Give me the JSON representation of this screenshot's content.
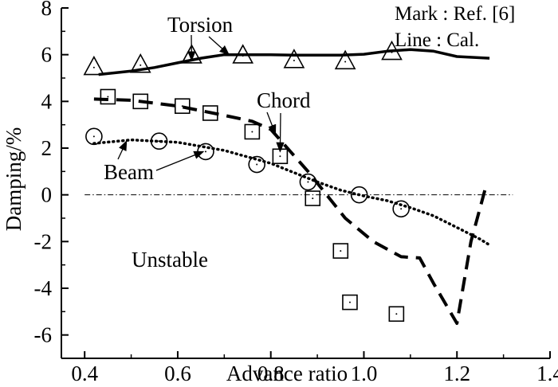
{
  "chart_data": {
    "type": "line",
    "xlabel": "Advance ratio",
    "ylabel": "Damping/%",
    "xlim": [
      0.35,
      1.4
    ],
    "ylim": [
      -7,
      8
    ],
    "xticks": [
      "0.4",
      "0.6",
      "0.8",
      "1.0",
      "1.2",
      "1.4"
    ],
    "yticks": [
      "8",
      "6",
      "4",
      "2",
      "0",
      "-2",
      "-4",
      "-6"
    ],
    "grid": false,
    "legend": {
      "position": "top-right",
      "mark_text": "Mark : Ref. [6]",
      "line_text": "Line  : Cal."
    },
    "annotations": {
      "torsion": "Torsion",
      "chord": "Chord",
      "beam": "Beam",
      "unstable": "Unstable"
    },
    "zero_line": 0,
    "series": [
      {
        "name": "Torsion",
        "kind": "calculated",
        "style": "solid",
        "x": [
          0.43,
          0.5,
          0.55,
          0.6,
          0.65,
          0.7,
          0.75,
          0.8,
          0.85,
          0.9,
          0.95,
          1.0,
          1.05,
          1.1,
          1.15,
          1.2,
          1.27
        ],
        "y": [
          5.15,
          5.3,
          5.45,
          5.65,
          5.85,
          6.0,
          6.0,
          6.0,
          5.98,
          5.98,
          5.98,
          6.02,
          6.15,
          6.22,
          6.15,
          5.92,
          5.85
        ]
      },
      {
        "name": "Torsion",
        "kind": "reference",
        "marker": "triangle",
        "x": [
          0.42,
          0.52,
          0.63,
          0.74,
          0.85,
          0.96,
          1.06
        ],
        "y": [
          5.45,
          5.55,
          5.95,
          5.95,
          5.75,
          5.7,
          6.1
        ]
      },
      {
        "name": "Chord",
        "kind": "calculated",
        "style": "dashed",
        "x": [
          0.42,
          0.5,
          0.6,
          0.7,
          0.76,
          0.8,
          0.84,
          0.88,
          0.92,
          0.96,
          1.02,
          1.08,
          1.12,
          1.15,
          1.2,
          1.23,
          1.26
        ],
        "y": [
          4.1,
          4.05,
          3.8,
          3.4,
          3.15,
          2.8,
          1.9,
          1.0,
          0.0,
          -1.0,
          -2.0,
          -2.65,
          -2.7,
          -3.8,
          -5.5,
          -2.0,
          0.2
        ]
      },
      {
        "name": "Chord",
        "kind": "reference",
        "marker": "square",
        "x": [
          0.45,
          0.52,
          0.61,
          0.67,
          0.76,
          0.82,
          0.89,
          0.95,
          0.97,
          1.07
        ],
        "y": [
          4.2,
          4.0,
          3.8,
          3.5,
          2.7,
          1.65,
          -0.15,
          -2.4,
          -4.6,
          -5.1
        ]
      },
      {
        "name": "Beam",
        "kind": "calculated",
        "style": "dotted",
        "x": [
          0.42,
          0.5,
          0.6,
          0.7,
          0.8,
          0.85,
          0.9,
          0.95,
          1.0,
          1.05,
          1.1,
          1.15,
          1.2,
          1.25,
          1.27
        ],
        "y": [
          2.2,
          2.35,
          2.25,
          1.9,
          1.35,
          0.95,
          0.55,
          0.2,
          -0.05,
          -0.25,
          -0.55,
          -0.9,
          -1.4,
          -1.9,
          -2.15
        ]
      },
      {
        "name": "Beam",
        "kind": "reference",
        "marker": "circle",
        "x": [
          0.42,
          0.56,
          0.66,
          0.77,
          0.88,
          0.99,
          1.08
        ],
        "y": [
          2.5,
          2.3,
          1.85,
          1.3,
          0.55,
          0.0,
          -0.6
        ]
      }
    ]
  }
}
